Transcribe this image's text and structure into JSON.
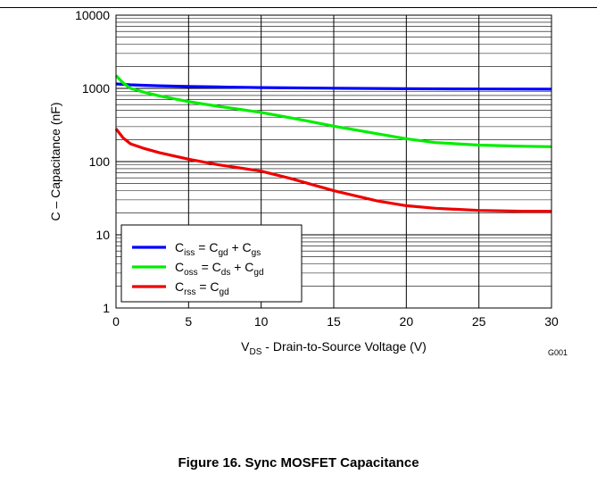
{
  "caption": "Figure 16. Sync MOSFET Capacitance",
  "figure_code": "G001",
  "chart_data": {
    "type": "line",
    "xlabel": {
      "main": "V",
      "sub": "DS",
      "rest": " - Drain-to-Source Voltage (V)"
    },
    "ylabel": "C – Capacitance (nF)",
    "xlim": [
      0,
      30
    ],
    "ylim": [
      1,
      10000
    ],
    "y_scale": "log",
    "grid": true,
    "legend_position": "bottom-left",
    "x_ticks": [
      0,
      5,
      10,
      15,
      20,
      25,
      30
    ],
    "x_tick_labels": [
      "0",
      "5",
      "10",
      "15",
      "20",
      "25",
      "30"
    ],
    "y_ticks": [
      1,
      10,
      100,
      1000,
      10000
    ],
    "y_tick_labels": [
      "1",
      "10",
      "100",
      "1000",
      "10000"
    ],
    "series": [
      {
        "legend": [
          {
            "t": "C",
            "sub": "iss"
          },
          {
            "t": " = C"
          },
          {
            "t": "",
            "sub": "gd"
          },
          {
            "t": " + C"
          },
          {
            "t": "",
            "sub": "gs"
          }
        ],
        "color": "#0000ff",
        "x": [
          0,
          1,
          2,
          3,
          5,
          7,
          10,
          15,
          20,
          25,
          30
        ],
        "y": [
          1150,
          1120,
          1100,
          1085,
          1060,
          1045,
          1025,
          1005,
          990,
          980,
          975
        ]
      },
      {
        "legend": [
          {
            "t": "C",
            "sub": "oss"
          },
          {
            "t": " = C"
          },
          {
            "t": "",
            "sub": "ds"
          },
          {
            "t": " + C"
          },
          {
            "t": "",
            "sub": "gd"
          }
        ],
        "color": "#00ee00",
        "x": [
          0,
          0.5,
          1,
          2,
          3,
          5,
          7,
          10,
          13,
          15,
          18,
          20,
          22,
          25,
          28,
          30
        ],
        "y": [
          1500,
          1180,
          1000,
          880,
          790,
          660,
          570,
          470,
          365,
          305,
          240,
          205,
          182,
          168,
          162,
          160
        ]
      },
      {
        "legend": [
          {
            "t": "C",
            "sub": "rss"
          },
          {
            "t": " =  C"
          },
          {
            "t": "",
            "sub": "gd"
          }
        ],
        "color": "#ee0000",
        "x": [
          0,
          0.5,
          1,
          2,
          3,
          5,
          7,
          10,
          12,
          15,
          18,
          20,
          22,
          25,
          28,
          30
        ],
        "y": [
          280,
          210,
          175,
          150,
          132,
          108,
          91,
          74,
          59,
          40,
          29,
          25,
          23,
          21.5,
          21,
          21
        ]
      }
    ]
  }
}
